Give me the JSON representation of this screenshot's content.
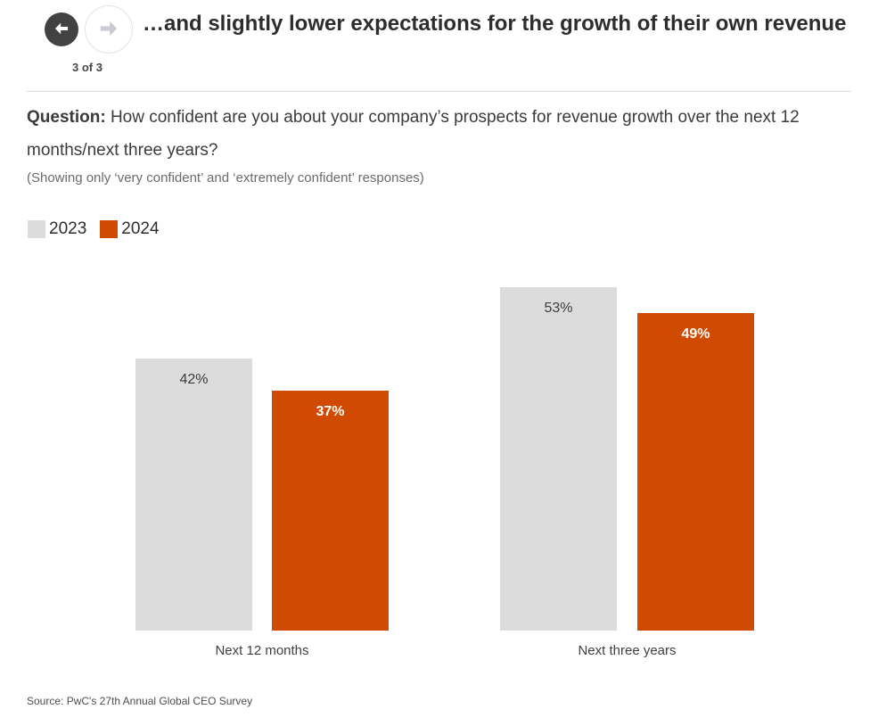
{
  "pagination": {
    "label": "3 of 3"
  },
  "header": {
    "title": "…and slightly lower expectations for the growth of their own revenue"
  },
  "question": {
    "label": "Question:",
    "text": " How confident are you about your company’s prospects for revenue growth over the next 12 months/next three years?",
    "note": "(Showing only ‘very confident’ and ‘extremely confident’ responses)"
  },
  "chart_data": {
    "type": "bar",
    "categories": [
      "Next 12 months",
      "Next three years"
    ],
    "series": [
      {
        "name": "2023",
        "color": "#dcdcdc",
        "values": [
          42,
          53
        ],
        "labels": [
          "42%",
          "53%"
        ]
      },
      {
        "name": "2024",
        "color": "#d04a02",
        "values": [
          37,
          49
        ],
        "labels": [
          "37%",
          "49%"
        ]
      }
    ],
    "unit": "%",
    "ylim": [
      0,
      60
    ],
    "grid": false,
    "value_labels": "inside-top",
    "legend_position": "top-left"
  },
  "source": "Source: PwC's 27th Annual Global CEO Survey",
  "colors": {
    "accent_orange": "#d04a02",
    "series_gray": "#dcdcdc",
    "nav_button_dark": "#424242",
    "nav_arrow_disabled": "#c9cdd1",
    "text_dark": "#2d2d2d"
  }
}
